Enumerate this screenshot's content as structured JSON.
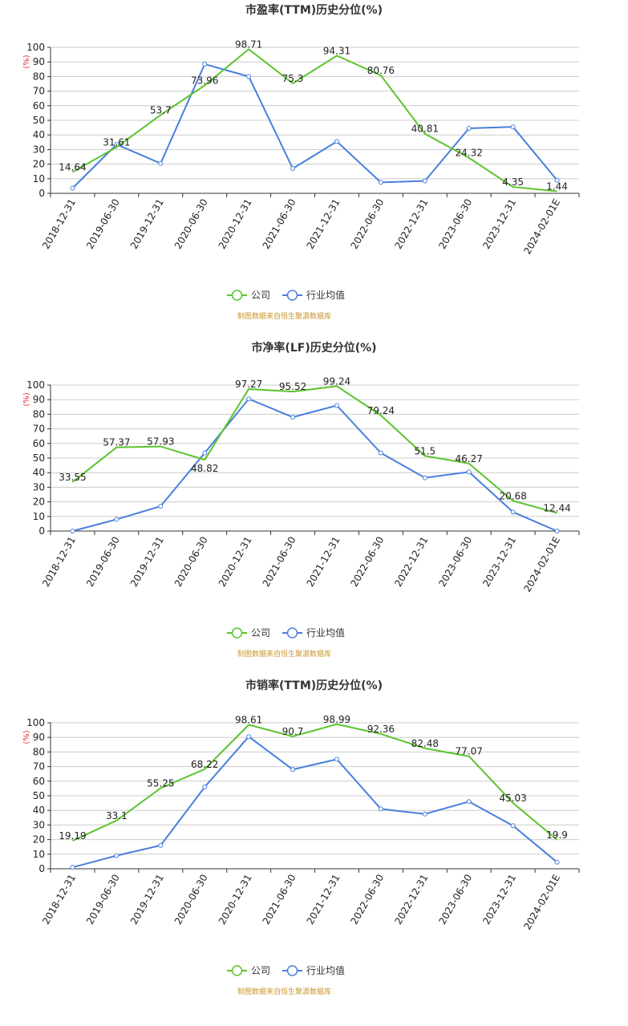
{
  "source_note": "制图数据来自恒生聚源数据库",
  "legend": {
    "company": "公司",
    "industry": "行业均值"
  },
  "colors": {
    "company": "#5bc42e",
    "industry": "#4a7fdc",
    "grid": "#cccccc",
    "unit": "#e03030",
    "source": "#c8962a"
  },
  "chart_data": [
    {
      "type": "line",
      "title": "市盈率(TTM)历史分位(%)",
      "ylabel": "(%)",
      "ylim": [
        0,
        100
      ],
      "yticks": [
        0,
        10,
        20,
        30,
        40,
        50,
        60,
        70,
        80,
        90,
        100
      ],
      "grid": true,
      "legend_position": "bottom-center",
      "categories": [
        "2018-12-31",
        "2019-06-30",
        "2019-12-31",
        "2020-06-30",
        "2020-12-31",
        "2021-06-30",
        "2021-12-31",
        "2022-06-30",
        "2022-12-31",
        "2023-06-30",
        "2023-12-31",
        "2024-02-01E"
      ],
      "series": [
        {
          "name": "公司",
          "values": [
            14.64,
            31.61,
            53.7,
            73.96,
            98.71,
            75.3,
            94.31,
            80.76,
            40.81,
            24.32,
            4.35,
            1.44
          ],
          "labels": [
            "14.64",
            "31.61",
            "53.7",
            "73.96",
            "98.71",
            "75.3",
            "94.31",
            "80.76",
            "40.81",
            "24.32",
            "4.35",
            "1.44"
          ]
        },
        {
          "name": "行业均值",
          "values": [
            3.5,
            33.5,
            20.5,
            88.5,
            80,
            17,
            35.5,
            7.5,
            8.5,
            44.5,
            45.5,
            9
          ]
        }
      ]
    },
    {
      "type": "line",
      "title": "市净率(LF)历史分位(%)",
      "ylabel": "(%)",
      "ylim": [
        0,
        100
      ],
      "yticks": [
        0,
        10,
        20,
        30,
        40,
        50,
        60,
        70,
        80,
        90,
        100
      ],
      "grid": true,
      "legend_position": "bottom-center",
      "categories": [
        "2018-12-31",
        "2019-06-30",
        "2019-12-31",
        "2020-06-30",
        "2020-12-31",
        "2021-06-30",
        "2021-12-31",
        "2022-06-30",
        "2022-12-31",
        "2023-06-30",
        "2023-12-31",
        "2024-02-01E"
      ],
      "series": [
        {
          "name": "公司",
          "values": [
            33.55,
            57.37,
            57.93,
            48.82,
            97.27,
            95.52,
            99.24,
            79.24,
            51.5,
            46.27,
            20.68,
            12.44
          ],
          "labels": [
            "33.55",
            "57.37",
            "57.93",
            "48.82",
            "97.27",
            "95.52",
            "99.24",
            "79.24",
            "51.5",
            "46.27",
            "20.68",
            "12.44"
          ]
        },
        {
          "name": "行业均值",
          "values": [
            0,
            8,
            17,
            53.5,
            90.5,
            78,
            86,
            53.5,
            36.5,
            40.5,
            13,
            0
          ]
        }
      ]
    },
    {
      "type": "line",
      "title": "市销率(TTM)历史分位(%)",
      "ylabel": "(%)",
      "ylim": [
        0,
        100
      ],
      "yticks": [
        0,
        10,
        20,
        30,
        40,
        50,
        60,
        70,
        80,
        90,
        100
      ],
      "grid": true,
      "legend_position": "bottom-center",
      "categories": [
        "2018-12-31",
        "2019-06-30",
        "2019-12-31",
        "2020-06-30",
        "2020-12-31",
        "2021-06-30",
        "2021-12-31",
        "2022-06-30",
        "2022-12-31",
        "2023-06-30",
        "2023-12-31",
        "2024-02-01E"
      ],
      "series": [
        {
          "name": "公司",
          "values": [
            19.19,
            33.1,
            55.25,
            68.22,
            98.61,
            90.7,
            98.99,
            92.36,
            82.48,
            77.07,
            45.03,
            19.9
          ],
          "labels": [
            "19.19",
            "33.1",
            "55.25",
            "68.22",
            "98.61",
            "90.7",
            "98.99",
            "92.36",
            "82.48",
            "77.07",
            "45.03",
            "19.9"
          ]
        },
        {
          "name": "行业均值",
          "values": [
            1,
            9,
            16,
            56,
            90.5,
            68,
            75,
            41,
            37.5,
            46,
            29.5,
            4.5
          ]
        }
      ]
    }
  ]
}
